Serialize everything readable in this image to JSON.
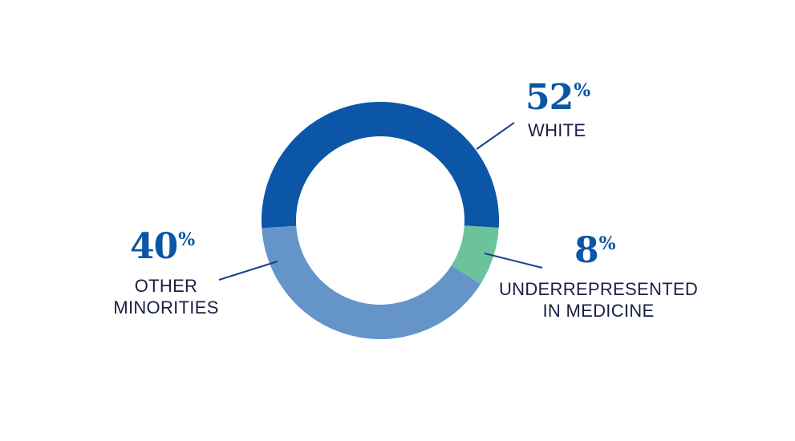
{
  "chart_data": {
    "type": "pie",
    "subtype": "donut",
    "title": "",
    "slices": [
      {
        "label": "WHITE",
        "value": 52,
        "color": "#0b56a6"
      },
      {
        "label": "UNDERREPRESENTED IN MEDICINE",
        "value": 8,
        "color": "#6cc39b"
      },
      {
        "label": "OTHER MINORITIES",
        "value": 40,
        "color": "#6494c8"
      }
    ],
    "units": "%",
    "legend": "none (callout labels)"
  },
  "colors": {
    "pct_text": "#0b56a6",
    "label_text": "#1a1f45",
    "leader_line": "#17428a",
    "background": "#ffffff"
  },
  "labels": {
    "white": {
      "pct": "52",
      "sign": "%",
      "line1": "WHITE"
    },
    "urim": {
      "pct": "8",
      "sign": "%",
      "line1": "UNDERREPRESENTED",
      "line2": "IN MEDICINE"
    },
    "other": {
      "pct": "40",
      "sign": "%",
      "line1": "OTHER",
      "line2": "MINORITIES"
    }
  }
}
